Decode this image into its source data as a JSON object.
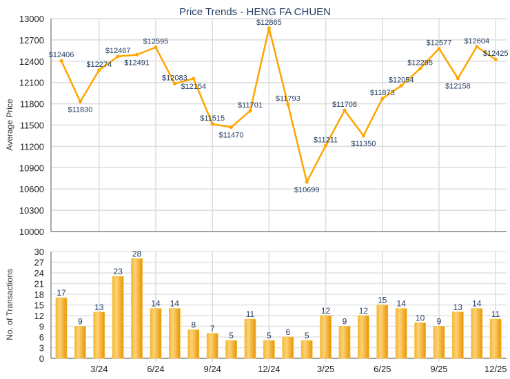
{
  "chart_data": [
    {
      "type": "line",
      "title": "Price Trends - HENG FA CHUEN",
      "ylabel": "Average Price",
      "ylim": [
        10000,
        13000
      ],
      "yticks": [
        10000,
        10300,
        10600,
        10900,
        11200,
        11500,
        11800,
        12100,
        12400,
        12700,
        13000
      ],
      "grid": true,
      "line_color": "#ffa500",
      "label_color": "#1f3a5f",
      "values": [
        12406,
        11830,
        12274,
        12467,
        12491,
        12595,
        12083,
        12154,
        11515,
        11470,
        11701,
        12865,
        11793,
        10699,
        11211,
        11708,
        11350,
        11873,
        12054,
        12295,
        12577,
        12158,
        12604,
        12425
      ],
      "data_labels": [
        "$12406",
        "$11830",
        "$12274",
        "$12467",
        "$12491",
        "$12595",
        "$12083",
        "$12154",
        "$11515",
        "$11470",
        "$11701",
        "$12865",
        "$11793",
        "$10699",
        "$11211",
        "$11708",
        "$11350",
        "$11873",
        "$12054",
        "$12295",
        "$12577",
        "$12158",
        "$12604",
        "$12425"
      ]
    },
    {
      "type": "bar",
      "ylabel": "No. of Transactions",
      "ylim": [
        0,
        30
      ],
      "yticks": [
        0,
        3,
        6,
        9,
        12,
        15,
        18,
        21,
        24,
        27,
        30
      ],
      "grid": true,
      "bar_color": "#f0a000",
      "values": [
        17,
        9,
        13,
        23,
        28,
        14,
        14,
        8,
        7,
        5,
        11,
        5,
        6,
        5,
        12,
        9,
        12,
        15,
        14,
        10,
        9,
        13,
        14,
        11
      ],
      "xtick_labels": [
        {
          "index": 2,
          "label": "3/24"
        },
        {
          "index": 5,
          "label": "6/24"
        },
        {
          "index": 8,
          "label": "9/24"
        },
        {
          "index": 11,
          "label": "12/24"
        },
        {
          "index": 14,
          "label": "3/25"
        },
        {
          "index": 17,
          "label": "6/25"
        },
        {
          "index": 20,
          "label": "9/25"
        },
        {
          "index": 23,
          "label": "12/25"
        }
      ]
    }
  ]
}
